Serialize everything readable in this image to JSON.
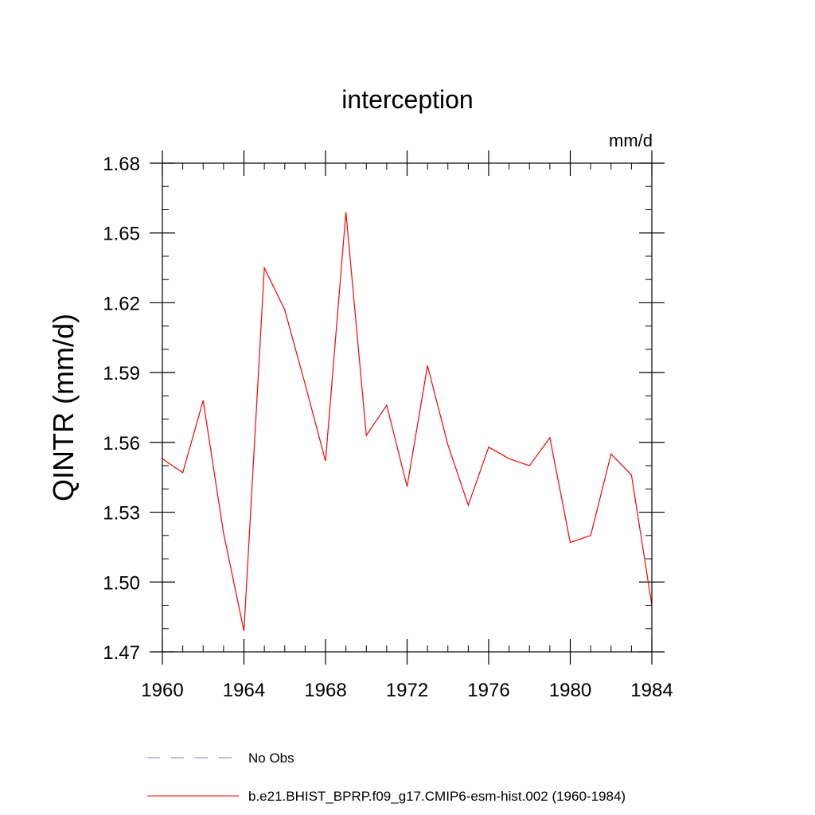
{
  "chart_data": {
    "type": "line",
    "title": "interception",
    "units": "mm/d",
    "xlabel": "",
    "ylabel": "QINTR  (mm/d)",
    "xlim": [
      1960,
      1984
    ],
    "ylim": [
      1.47,
      1.68
    ],
    "x_ticks": [
      1960,
      1964,
      1968,
      1972,
      1976,
      1980,
      1984
    ],
    "x_tick_labels": [
      "1960",
      "1964",
      "1968",
      "1972",
      "1976",
      "1980",
      "1984"
    ],
    "y_ticks": [
      1.47,
      1.5,
      1.53,
      1.56,
      1.59,
      1.62,
      1.65,
      1.68
    ],
    "y_tick_labels": [
      "1.47",
      "1.50",
      "1.53",
      "1.56",
      "1.59",
      "1.62",
      "1.65",
      "1.68"
    ],
    "x_minor_step": 1,
    "y_minor_step": 0.01,
    "grid": false,
    "legend_position": "bottom",
    "series": [
      {
        "name": "b.e21.BHIST_BPRP.f09_g17.CMIP6-esm-hist.002 (1960-1984)",
        "color": "#ff0000",
        "dash": "solid",
        "x": [
          1960,
          1961,
          1962,
          1963,
          1964,
          1965,
          1966,
          1967,
          1968,
          1969,
          1970,
          1971,
          1972,
          1973,
          1974,
          1975,
          1976,
          1977,
          1978,
          1979,
          1980,
          1981,
          1982,
          1983,
          1984
        ],
        "values": [
          1.553,
          1.547,
          1.578,
          1.521,
          1.479,
          1.635,
          1.617,
          1.585,
          1.552,
          1.659,
          1.563,
          1.576,
          1.541,
          1.593,
          1.559,
          1.533,
          1.558,
          1.553,
          1.55,
          1.562,
          1.517,
          1.52,
          1.555,
          1.546,
          1.49
        ]
      }
    ],
    "legend": [
      {
        "label": "No Obs",
        "color": "#7f7fd0",
        "dash": "dashed"
      },
      {
        "label": "b.e21.BHIST_BPRP.f09_g17.CMIP6-esm-hist.002 (1960-1984)",
        "color": "#ff0000",
        "dash": "solid"
      }
    ]
  }
}
